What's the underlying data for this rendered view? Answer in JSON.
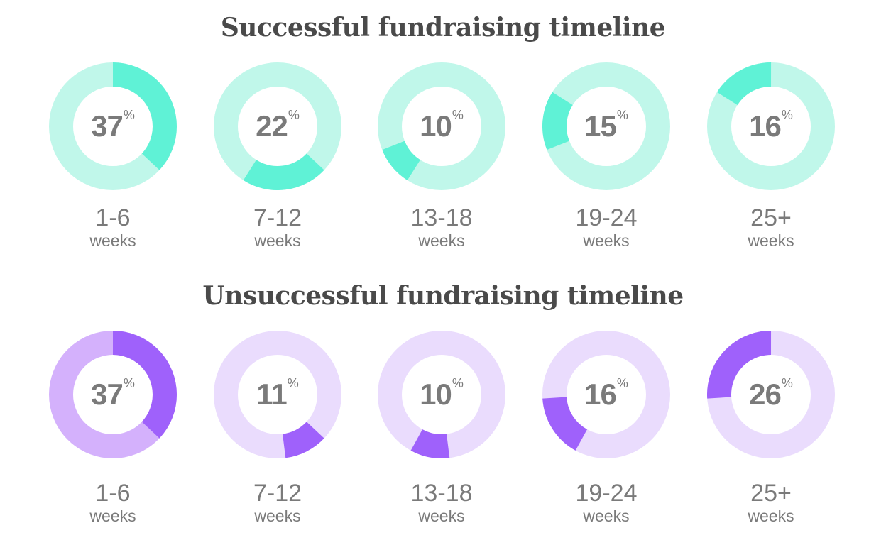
{
  "chart_data": [
    {
      "type": "pie",
      "title": "Successful fundraising timeline",
      "categories": [
        "1-6",
        "7-12",
        "13-18",
        "19-24",
        "25+"
      ],
      "unit": "weeks",
      "values": [
        37,
        22,
        10,
        15,
        16
      ],
      "value_suffix": "%",
      "colors": {
        "highlight": "#5ff2d6",
        "track": "#c0f7ea",
        "first_track": "#c0f7ea"
      }
    },
    {
      "type": "pie",
      "title": "Unsuccessful fundraising timeline",
      "categories": [
        "1-6",
        "7-12",
        "13-18",
        "19-24",
        "25+"
      ],
      "unit": "weeks",
      "values": [
        37,
        11,
        10,
        16,
        26
      ],
      "value_suffix": "%",
      "colors": {
        "highlight": "#9f61fb",
        "track": "#eadcfd",
        "first_track": "#d4b1fc"
      }
    }
  ]
}
